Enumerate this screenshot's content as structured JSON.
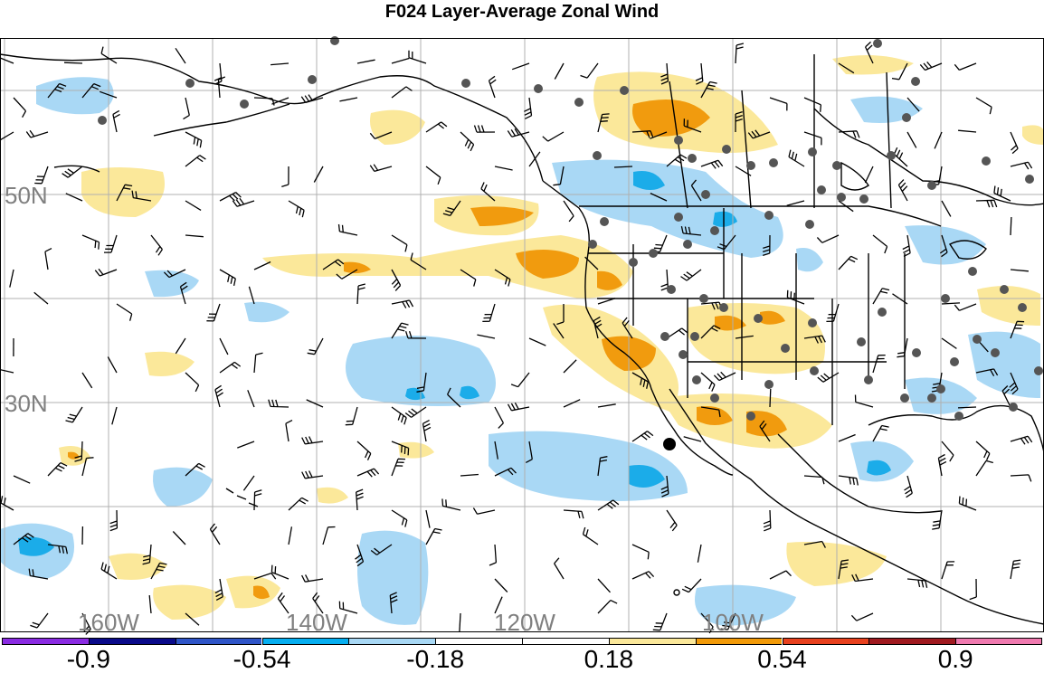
{
  "title": "F024 Layer-Average Zonal Wind",
  "map": {
    "lat_labels": [
      {
        "text": "50N",
        "lat": 50
      },
      {
        "text": "30N",
        "lat": 30
      }
    ],
    "lon_labels": [
      {
        "text": "160W",
        "lon": -160
      },
      {
        "text": "140W",
        "lon": -140
      },
      {
        "text": "120W",
        "lon": -120
      },
      {
        "text": "100W",
        "lon": -100
      }
    ],
    "gridline_lons": [
      -170,
      -160,
      -150,
      -140,
      -130,
      -120,
      -110,
      -100,
      -90,
      -80
    ],
    "gridline_lats": [
      60,
      50,
      40,
      30,
      20
    ],
    "colors": {
      "positive_light": "#fbe89a",
      "positive_mid": "#f19b0e",
      "negative_light": "#a9d8f5",
      "negative_mid": "#1bace9",
      "land_outline": "#000000",
      "station": "#555555",
      "grid": "#b0b0b0"
    }
  },
  "colorbar": {
    "bins": [
      {
        "color": "#8a2be2"
      },
      {
        "color": "#0a0a8a"
      },
      {
        "color": "#2f55c8"
      },
      {
        "color": "#06aef0"
      },
      {
        "color": "#a8d8f5"
      },
      {
        "color": "#ffffff"
      },
      {
        "color": "#ffffff"
      },
      {
        "color": "#fbe89a"
      },
      {
        "color": "#f29a08"
      },
      {
        "color": "#e8411e"
      },
      {
        "color": "#a01a20"
      },
      {
        "color": "#f07ab0"
      }
    ],
    "labels": [
      {
        "text": "-0.9",
        "value": -0.9
      },
      {
        "text": "-0.54",
        "value": -0.54
      },
      {
        "text": "-0.18",
        "value": -0.18
      },
      {
        "text": "0.18",
        "value": 0.18
      },
      {
        "text": "0.54",
        "value": 0.54
      },
      {
        "text": "0.9",
        "value": 0.9
      }
    ]
  }
}
